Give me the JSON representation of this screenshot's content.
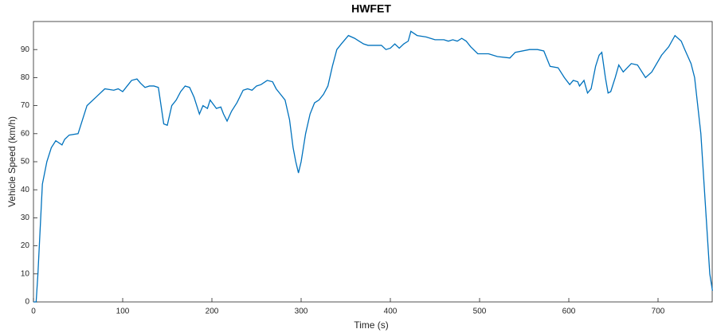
{
  "chart_data": {
    "type": "line",
    "title": "HWFET",
    "x_label": "Time (s)",
    "y_label": "Vehicle Speed (km/h)",
    "x": [
      0,
      3,
      5,
      10,
      15,
      20,
      25,
      32,
      35,
      40,
      50,
      55,
      60,
      70,
      80,
      90,
      95,
      100,
      105,
      110,
      116,
      120,
      125,
      130,
      135,
      140,
      143,
      146,
      150,
      155,
      160,
      165,
      170,
      175,
      180,
      186,
      190,
      195,
      198,
      205,
      210,
      213,
      217,
      222,
      228,
      235,
      240,
      245,
      250,
      255,
      262,
      268,
      272,
      277,
      282,
      287,
      291,
      294,
      297,
      300,
      305,
      310,
      315,
      320,
      325,
      330,
      335,
      340,
      345,
      353,
      360,
      365,
      370,
      375,
      390,
      395,
      400,
      405,
      410,
      415,
      420,
      423,
      430,
      440,
      450,
      460,
      465,
      470,
      475,
      480,
      485,
      490,
      498,
      510,
      520,
      534,
      540,
      556,
      565,
      572,
      579,
      588,
      595,
      601,
      605,
      610,
      612,
      617,
      621,
      625,
      630,
      634,
      637,
      641,
      644,
      647,
      652,
      656,
      661,
      670,
      677,
      686,
      693,
      704,
      712,
      719,
      726,
      730,
      737,
      741,
      748,
      754,
      758,
      761
    ],
    "series": [
      {
        "name": "Vehicle Speed",
        "color": "#0072BD",
        "values": [
          0,
          0,
          10,
          42,
          50,
          55,
          57.5,
          56,
          58,
          59.5,
          60,
          65,
          70,
          73,
          76,
          75.5,
          76,
          75,
          77,
          79,
          79.5,
          78,
          76.5,
          77,
          77,
          76.5,
          70,
          63.5,
          63,
          70,
          72,
          75,
          77,
          76.5,
          73,
          67,
          70,
          69,
          72,
          69,
          69.5,
          67,
          64.5,
          68,
          71,
          75.5,
          76,
          75.5,
          77,
          77.5,
          79,
          78.5,
          76,
          74,
          72,
          65,
          55,
          50,
          46,
          50,
          60,
          67,
          71,
          72,
          74,
          77,
          84,
          90,
          92,
          95,
          94,
          93,
          92,
          91.5,
          91.5,
          90,
          90.5,
          92,
          90.5,
          92,
          93,
          96.5,
          95,
          94.5,
          93.5,
          93.5,
          93,
          93.5,
          93,
          94,
          93,
          91,
          88.5,
          88.5,
          87.5,
          87,
          89,
          90,
          90,
          89.5,
          84,
          83.5,
          80,
          77.5,
          79,
          78.5,
          77,
          79,
          74.5,
          76,
          84,
          88,
          89,
          80,
          74.5,
          75,
          80,
          84.5,
          82,
          85,
          84.5,
          80,
          82,
          88,
          91,
          95,
          93,
          90,
          85,
          80,
          60,
          30,
          10,
          4
        ]
      }
    ],
    "xlim": [
      0,
      765
    ],
    "ylim": [
      0,
      100
    ],
    "xticks": [
      0,
      100,
      200,
      300,
      400,
      500,
      600,
      700
    ],
    "yticks": [
      0,
      10,
      20,
      30,
      40,
      50,
      60,
      70,
      80,
      90
    ]
  }
}
